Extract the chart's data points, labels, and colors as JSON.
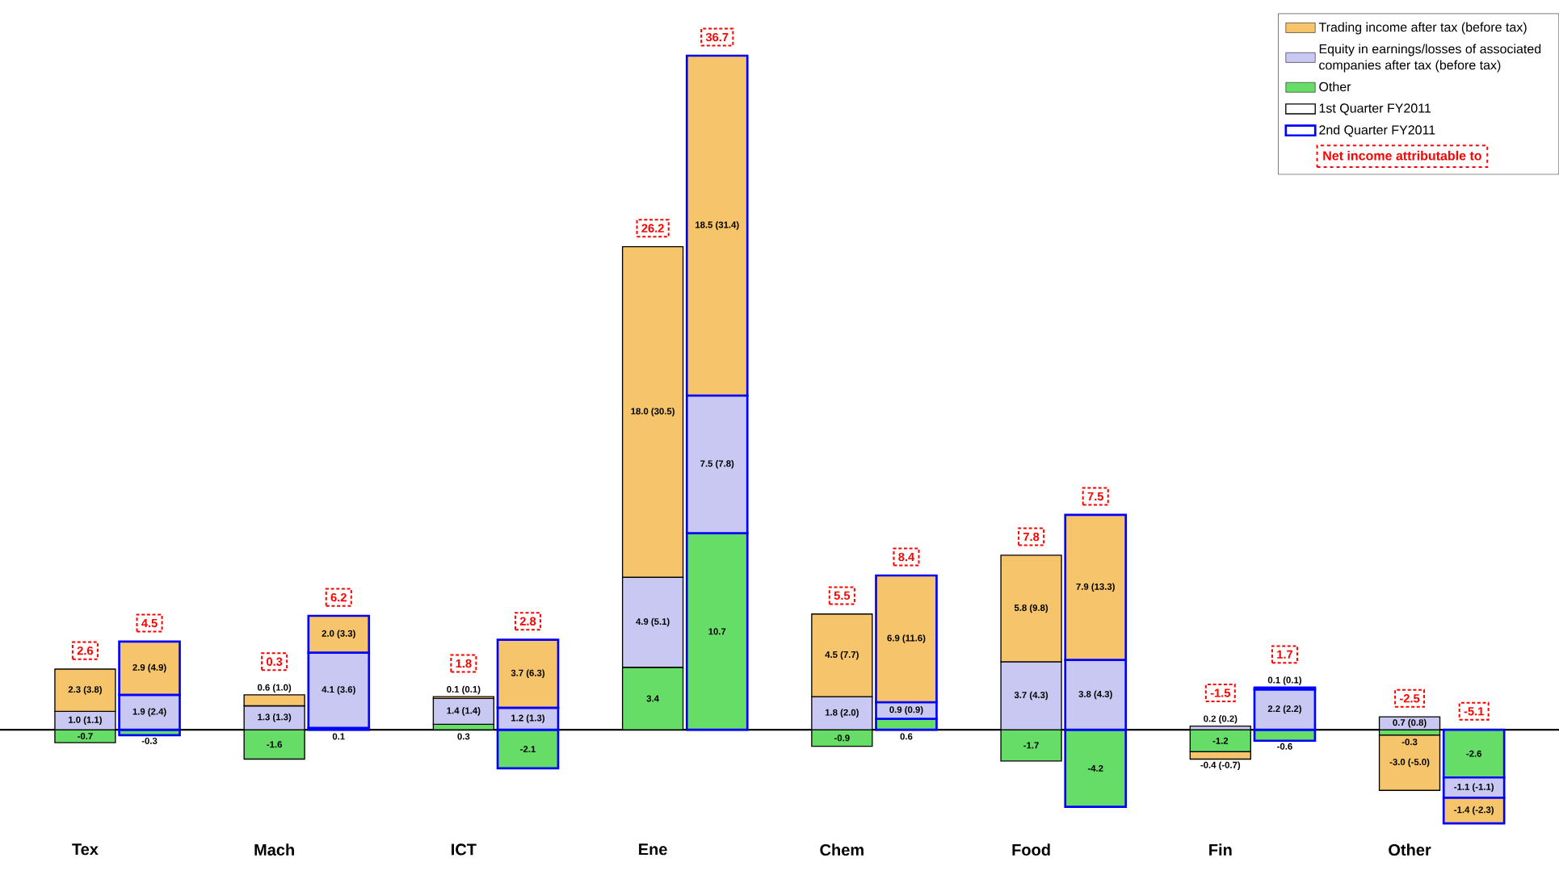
{
  "chart_data": {
    "type": "bar",
    "stacked": true,
    "legend": "top right",
    "categories": [
      "Tex",
      null,
      "Mach",
      null,
      "ICT",
      null,
      "Ene",
      null,
      "Chem",
      null,
      "Food",
      null,
      "Fin",
      null,
      "Other",
      null
    ],
    "series": [
      {
        "name": "Other",
        "color": "#66dd66",
        "values": [
          -0.7,
          -0.3,
          -1.6,
          0.1,
          0.3,
          -2.1,
          3.4,
          10.7,
          -0.9,
          0.6,
          -1.7,
          -4.2,
          -1.2,
          -0.6,
          -0.3,
          -2.6
        ],
        "value_labels": [
          "-0.7",
          "-0.3",
          "-1.6",
          "0.1",
          "0.3",
          "-2.1",
          "3.4",
          "10.7",
          "-0.9",
          "0.6",
          "-1.7",
          "-4.2",
          "-1.2",
          "-0.6",
          "-0.3",
          "-2.6"
        ]
      },
      {
        "name": "Equity in earnings/losses of associated companies after tax (before tax)",
        "color": "#c8c8f2",
        "values": [
          1.0,
          1.9,
          1.3,
          4.1,
          1.4,
          1.2,
          4.9,
          7.5,
          1.8,
          0.9,
          3.7,
          3.8,
          0.2,
          2.2,
          0.7,
          -1.1
        ],
        "value_labels": [
          "1.0 (1.1)",
          "1.9 (2.4)",
          "1.3 (1.3)",
          "4.1 (3.6)",
          "1.4 (1.4)",
          "1.2 (1.3)",
          "4.9 (5.1)",
          "7.5 (7.8)",
          "1.8 (2.0)",
          "0.9 (0.9)",
          "3.7 (4.3)",
          "3.8 (4.3)",
          "0.2 (0.2)",
          "2.2 (2.2)",
          "0.7 (0.8)",
          "-1.1 (-1.1)"
        ]
      },
      {
        "name": "Trading income after tax (before tax)",
        "color": "#f6c46a",
        "values": [
          2.3,
          2.9,
          0.6,
          2.0,
          0.1,
          3.7,
          18.0,
          18.5,
          4.5,
          6.9,
          5.8,
          7.9,
          -0.4,
          0.1,
          -3.0,
          -1.4
        ],
        "value_labels": [
          "2.3 (3.8)",
          "2.9 (4.9)",
          "0.6 (1.0)",
          "2.0 (3.3)",
          "0.1 (0.1)",
          "3.7 (6.3)",
          "18.0 (30.5)",
          "18.5 (31.4)",
          "4.5 (7.7)",
          "6.9 (11.6)",
          "5.8 (9.8)",
          "7.9 (13.3)",
          "-0.4 (-0.7)",
          "0.1 (0.1)",
          "-3.0 (-5.0)",
          "-1.4 (-2.3)"
        ]
      }
    ],
    "totals": [
      "2.6",
      "4.5",
      "0.3",
      "6.2",
      "1.8",
      "2.8",
      "26.2",
      "36.7",
      "5.5",
      "8.4",
      "7.8",
      "7.5",
      "-1.5",
      "1.7",
      "-2.5",
      "-5.1"
    ],
    "annotations": [
      "1st Quarter FY2011",
      "2nd Quarter FY2011",
      "Net income attributable to"
    ]
  }
}
